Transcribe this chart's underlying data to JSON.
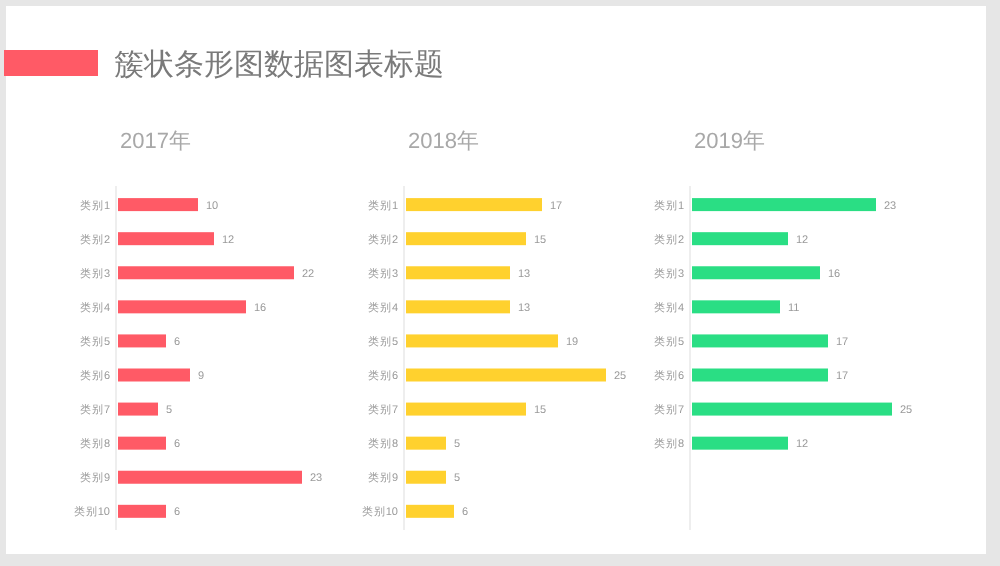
{
  "chart_data": [
    {
      "type": "bar",
      "orientation": "horizontal",
      "title": "簇状条形图数据图表标题",
      "subtitle": "2017年",
      "categories": [
        "类别1",
        "类别2",
        "类别3",
        "类别4",
        "类别5",
        "类别6",
        "类别7",
        "类别8",
        "类别9",
        "类别10"
      ],
      "values": [
        10,
        12,
        22,
        16,
        6,
        9,
        5,
        6,
        23,
        6
      ],
      "color": "#ff5a66",
      "data_labels": true
    },
    {
      "type": "bar",
      "orientation": "horizontal",
      "subtitle": "2018年",
      "categories": [
        "类别1",
        "类别2",
        "类别3",
        "类别4",
        "类别5",
        "类别6",
        "类别7",
        "类别8",
        "类别9",
        "类别10"
      ],
      "values": [
        17,
        15,
        13,
        13,
        19,
        25,
        15,
        5,
        5,
        6
      ],
      "color": "#ffd12e",
      "data_labels": true
    },
    {
      "type": "bar",
      "orientation": "horizontal",
      "subtitle": "2019年",
      "categories": [
        "类别1",
        "类别2",
        "类别3",
        "类别4",
        "类别5",
        "类别6",
        "类别7",
        "类别8"
      ],
      "values": [
        23,
        12,
        16,
        11,
        17,
        17,
        25,
        12
      ],
      "color": "#2ade84",
      "data_labels": true
    }
  ]
}
